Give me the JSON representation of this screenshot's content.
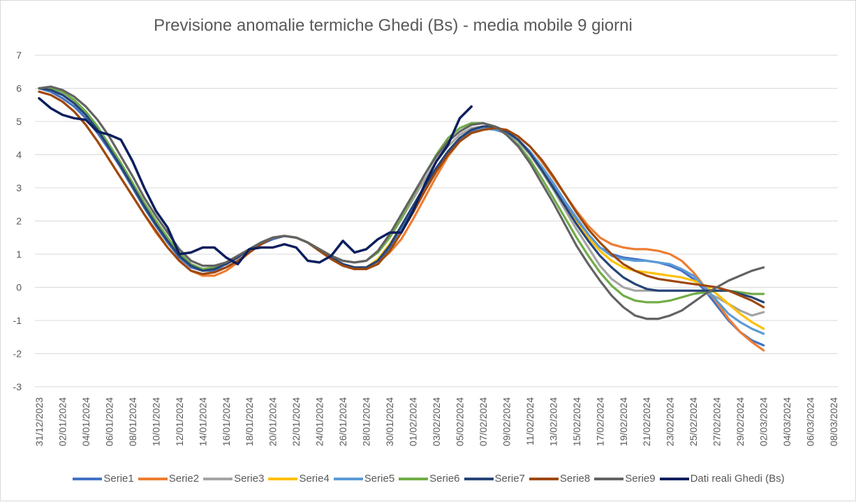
{
  "chart_data": {
    "type": "line",
    "title": "Previsione anomalie termiche Ghedi (Bs) - media mobile 9 giorni",
    "xlabel": "",
    "ylabel": "",
    "ylim": [
      -3,
      7
    ],
    "yticks": [
      "-3",
      "-2",
      "-1",
      "0",
      "1",
      "2",
      "3",
      "4",
      "5",
      "6",
      "7"
    ],
    "xtick_labels": [
      "31/12/2023",
      "02/01/2024",
      "04/01/2024",
      "06/01/2024",
      "08/01/2024",
      "10/01/2024",
      "12/01/2024",
      "14/01/2024",
      "16/01/2024",
      "18/01/2024",
      "20/01/2024",
      "22/01/2024",
      "24/01/2024",
      "26/01/2024",
      "28/01/2024",
      "30/01/2024",
      "01/02/2024",
      "03/02/2024",
      "05/02/2024",
      "07/02/2024",
      "09/02/2024",
      "11/02/2024",
      "13/02/2024",
      "15/02/2024",
      "17/02/2024",
      "19/02/2024",
      "21/02/2024",
      "23/02/2024",
      "25/02/2024",
      "27/02/2024",
      "29/02/2024",
      "02/03/2024",
      "04/03/2024",
      "06/03/2024",
      "08/03/2024"
    ],
    "x_first": "31/12/2023",
    "x_last": "08/03/2024",
    "grid": true,
    "legend_position": "bottom",
    "series": [
      {
        "name": "Serie1",
        "color": "#4472c4",
        "values": [
          6.0,
          5.9,
          5.7,
          5.45,
          5.1,
          4.65,
          4.15,
          3.6,
          3.0,
          2.4,
          1.85,
          1.35,
          0.9,
          0.6,
          0.5,
          0.5,
          0.6,
          0.8,
          1.05,
          1.3,
          1.45,
          1.55,
          1.5,
          1.35,
          1.1,
          0.85,
          0.65,
          0.55,
          0.55,
          0.75,
          1.2,
          1.8,
          2.4,
          3.0,
          3.55,
          4.05,
          4.45,
          4.7,
          4.8,
          4.8,
          4.7,
          4.45,
          4.1,
          3.6,
          3.05,
          2.55,
          2.05,
          1.6,
          1.2,
          1.0,
          0.9,
          0.85,
          0.8,
          0.75,
          0.65,
          0.5,
          0.25,
          -0.1,
          -0.55,
          -1.0,
          -1.35,
          -1.6,
          -1.75
        ]
      },
      {
        "name": "Serie2",
        "color": "#ed7d31",
        "values": [
          5.9,
          5.8,
          5.6,
          5.3,
          4.9,
          4.4,
          3.85,
          3.3,
          2.75,
          2.2,
          1.65,
          1.2,
          0.8,
          0.5,
          0.35,
          0.35,
          0.5,
          0.75,
          1.05,
          1.3,
          1.5,
          1.55,
          1.5,
          1.35,
          1.1,
          0.85,
          0.65,
          0.55,
          0.55,
          0.75,
          1.05,
          1.45,
          2.05,
          2.7,
          3.35,
          3.95,
          4.4,
          4.65,
          4.75,
          4.8,
          4.75,
          4.55,
          4.25,
          3.8,
          3.3,
          2.8,
          2.3,
          1.85,
          1.5,
          1.3,
          1.2,
          1.15,
          1.15,
          1.1,
          1.0,
          0.8,
          0.45,
          0.0,
          -0.45,
          -0.95,
          -1.35,
          -1.65,
          -1.9
        ]
      },
      {
        "name": "Serie3",
        "color": "#a5a5a5",
        "values": [
          6.0,
          6.0,
          5.85,
          5.6,
          5.25,
          4.8,
          4.25,
          3.7,
          3.1,
          2.5,
          1.95,
          1.45,
          1.0,
          0.7,
          0.55,
          0.6,
          0.75,
          0.95,
          1.15,
          1.35,
          1.5,
          1.55,
          1.5,
          1.35,
          1.15,
          0.95,
          0.8,
          0.75,
          0.8,
          1.05,
          1.5,
          2.05,
          2.65,
          3.25,
          3.8,
          4.25,
          4.6,
          4.8,
          4.85,
          4.8,
          4.65,
          4.4,
          4.0,
          3.5,
          2.95,
          2.35,
          1.75,
          1.2,
          0.65,
          0.25,
          0.0,
          -0.1,
          -0.1,
          -0.1,
          -0.1,
          -0.1,
          -0.1,
          -0.15,
          -0.3,
          -0.5,
          -0.7,
          -0.85,
          -0.75
        ]
      },
      {
        "name": "Serie4",
        "color": "#ffc000",
        "values": [
          6.0,
          5.95,
          5.8,
          5.55,
          5.2,
          4.75,
          4.2,
          3.65,
          3.05,
          2.45,
          1.9,
          1.4,
          0.95,
          0.65,
          0.5,
          0.55,
          0.7,
          0.9,
          1.15,
          1.35,
          1.5,
          1.55,
          1.5,
          1.35,
          1.1,
          0.9,
          0.7,
          0.6,
          0.6,
          0.85,
          1.3,
          1.85,
          2.45,
          3.05,
          3.6,
          4.1,
          4.5,
          4.75,
          4.85,
          4.8,
          4.7,
          4.45,
          4.05,
          3.55,
          3.0,
          2.45,
          1.95,
          1.5,
          1.1,
          0.8,
          0.6,
          0.5,
          0.45,
          0.4,
          0.35,
          0.3,
          0.2,
          0.05,
          -0.2,
          -0.5,
          -0.8,
          -1.05,
          -1.25
        ]
      },
      {
        "name": "Serie5",
        "color": "#5b9bd5",
        "values": [
          6.0,
          5.95,
          5.8,
          5.55,
          5.2,
          4.75,
          4.2,
          3.65,
          3.05,
          2.45,
          1.9,
          1.4,
          0.95,
          0.65,
          0.5,
          0.55,
          0.7,
          0.9,
          1.15,
          1.35,
          1.5,
          1.55,
          1.5,
          1.35,
          1.1,
          0.9,
          0.7,
          0.6,
          0.6,
          0.8,
          1.25,
          1.85,
          2.45,
          3.05,
          3.6,
          4.1,
          4.5,
          4.75,
          4.8,
          4.75,
          4.65,
          4.45,
          4.1,
          3.65,
          3.15,
          2.6,
          2.1,
          1.6,
          1.2,
          0.95,
          0.85,
          0.8,
          0.8,
          0.75,
          0.7,
          0.55,
          0.35,
          0.0,
          -0.4,
          -0.8,
          -1.05,
          -1.25,
          -1.4
        ]
      },
      {
        "name": "Serie6",
        "color": "#70ad47",
        "values": [
          6.0,
          6.0,
          5.9,
          5.65,
          5.3,
          4.85,
          4.3,
          3.75,
          3.15,
          2.55,
          2.0,
          1.5,
          1.05,
          0.7,
          0.55,
          0.6,
          0.75,
          0.95,
          1.15,
          1.35,
          1.5,
          1.55,
          1.5,
          1.35,
          1.15,
          0.95,
          0.8,
          0.75,
          0.8,
          1.05,
          1.5,
          2.1,
          2.75,
          3.4,
          4.0,
          4.5,
          4.8,
          4.95,
          4.95,
          4.85,
          4.6,
          4.3,
          3.85,
          3.3,
          2.7,
          2.1,
          1.5,
          0.95,
          0.45,
          0.05,
          -0.25,
          -0.4,
          -0.45,
          -0.45,
          -0.4,
          -0.3,
          -0.2,
          -0.15,
          -0.1,
          -0.1,
          -0.15,
          -0.2,
          -0.2
        ]
      },
      {
        "name": "Serie7",
        "color": "#264478",
        "values": [
          6.0,
          5.95,
          5.8,
          5.55,
          5.2,
          4.75,
          4.2,
          3.65,
          3.05,
          2.45,
          1.9,
          1.4,
          0.95,
          0.65,
          0.5,
          0.55,
          0.7,
          0.9,
          1.15,
          1.35,
          1.5,
          1.55,
          1.5,
          1.35,
          1.1,
          0.9,
          0.7,
          0.6,
          0.6,
          0.8,
          1.25,
          1.85,
          2.45,
          3.05,
          3.6,
          4.1,
          4.5,
          4.75,
          4.85,
          4.85,
          4.7,
          4.45,
          4.05,
          3.55,
          3.0,
          2.45,
          1.9,
          1.4,
          0.95,
          0.6,
          0.3,
          0.1,
          -0.05,
          -0.1,
          -0.1,
          -0.1,
          -0.1,
          -0.1,
          -0.1,
          -0.1,
          -0.2,
          -0.3,
          -0.45
        ]
      },
      {
        "name": "Serie8",
        "color": "#9e480e",
        "values": [
          5.9,
          5.8,
          5.6,
          5.3,
          4.9,
          4.4,
          3.85,
          3.3,
          2.75,
          2.2,
          1.7,
          1.2,
          0.8,
          0.5,
          0.4,
          0.45,
          0.6,
          0.8,
          1.05,
          1.3,
          1.5,
          1.55,
          1.5,
          1.35,
          1.1,
          0.85,
          0.65,
          0.55,
          0.55,
          0.7,
          1.1,
          1.65,
          2.25,
          2.9,
          3.5,
          4.0,
          4.4,
          4.65,
          4.75,
          4.8,
          4.75,
          4.55,
          4.25,
          3.85,
          3.35,
          2.8,
          2.25,
          1.75,
          1.35,
          1.0,
          0.7,
          0.5,
          0.35,
          0.25,
          0.2,
          0.15,
          0.1,
          0.05,
          0.0,
          -0.1,
          -0.25,
          -0.4,
          -0.6
        ]
      },
      {
        "name": "Serie9",
        "color": "#636363",
        "values": [
          6.0,
          6.05,
          5.95,
          5.75,
          5.45,
          5.05,
          4.55,
          3.95,
          3.35,
          2.7,
          2.15,
          1.65,
          1.15,
          0.8,
          0.65,
          0.65,
          0.75,
          0.95,
          1.15,
          1.35,
          1.5,
          1.55,
          1.5,
          1.35,
          1.15,
          0.95,
          0.8,
          0.75,
          0.8,
          1.1,
          1.6,
          2.2,
          2.8,
          3.4,
          3.95,
          4.4,
          4.7,
          4.9,
          4.95,
          4.85,
          4.6,
          4.25,
          3.75,
          3.15,
          2.55,
          1.9,
          1.25,
          0.7,
          0.2,
          -0.25,
          -0.6,
          -0.85,
          -0.95,
          -0.95,
          -0.85,
          -0.7,
          -0.45,
          -0.2,
          0.0,
          0.2,
          0.35,
          0.5,
          0.6
        ]
      },
      {
        "name": "Dati reali Ghedi (Bs)",
        "color": "#0b1f5e",
        "values": [
          5.7,
          5.4,
          5.2,
          5.1,
          5.05,
          4.7,
          4.6,
          4.45,
          3.8,
          3.0,
          2.3,
          1.8,
          1.0,
          1.05,
          1.2,
          1.2,
          0.9,
          0.7,
          1.15,
          1.2,
          1.2,
          1.3,
          1.2,
          0.8,
          0.75,
          0.95,
          1.4,
          1.05,
          1.15,
          1.45,
          1.65,
          1.65,
          2.3,
          3.1,
          3.8,
          4.3,
          5.1,
          5.45
        ]
      }
    ]
  }
}
